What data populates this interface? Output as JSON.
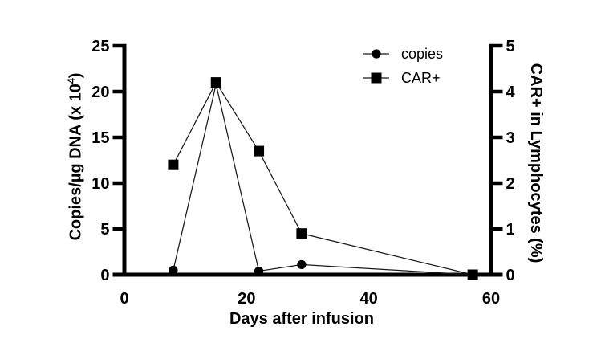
{
  "chart_data": {
    "type": "line",
    "x": [
      8,
      15,
      22,
      29,
      57
    ],
    "xlim": [
      0,
      60
    ],
    "x_ticks": [
      0,
      20,
      40,
      60
    ],
    "xlabel": "Days after infusion",
    "series": [
      {
        "name": "copies",
        "axis": "left",
        "marker": "circle",
        "values": [
          0.5,
          20.8,
          0.4,
          1.1,
          0
        ]
      },
      {
        "name": "CAR+",
        "axis": "right",
        "marker": "square",
        "values": [
          2.4,
          4.2,
          2.7,
          0.9,
          0
        ]
      }
    ],
    "left_axis": {
      "label_prefix": "Copies/µg DNA (x 10",
      "label_sup": "4",
      "label_suffix": ")",
      "ticks": [
        0,
        5,
        10,
        15,
        20,
        25
      ],
      "lim": [
        0,
        25
      ]
    },
    "right_axis": {
      "label": "CAR+ in Lymphocytes (%)",
      "ticks": [
        0,
        1,
        2,
        3,
        4,
        5
      ],
      "lim": [
        0,
        5
      ]
    },
    "legend": [
      {
        "label": "copies",
        "marker": "circle"
      },
      {
        "label": "CAR+",
        "marker": "square"
      }
    ],
    "layout": {
      "grid": false,
      "legend_position": "top-right-inside"
    },
    "colors": {
      "foreground": "#000000",
      "background": "#ffffff",
      "series_line": "#1a1a1a"
    }
  }
}
